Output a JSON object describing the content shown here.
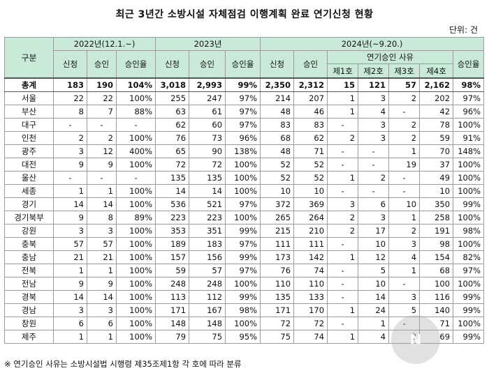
{
  "title": "최근 3년간 소방시설 자체점검 이행계획 완료 연기신청 현황",
  "unit": "단위: 건",
  "headers": {
    "category": "구분",
    "y2022": "2022년(12.1.~)",
    "y2023": "2023년",
    "y2024": "2024년(~9.20.)",
    "apply": "신청",
    "approve": "승인",
    "rate": "승인율",
    "reason_group": "연기승인 사유",
    "reasons": [
      "제1호",
      "제2호",
      "제3호",
      "제4호"
    ]
  },
  "rows": [
    [
      "총계",
      "183",
      "190",
      "104%",
      "3,018",
      "2,993",
      "99%",
      "2,350",
      "2,312",
      "15",
      "121",
      "57",
      "2,162",
      "98%"
    ],
    [
      "서울",
      "22",
      "22",
      "100%",
      "255",
      "247",
      "97%",
      "214",
      "207",
      "1",
      "3",
      "2",
      "202",
      "97%"
    ],
    [
      "부산",
      "8",
      "7",
      "88%",
      "63",
      "61",
      "97%",
      "48",
      "46",
      "1",
      "4",
      "-",
      "42",
      "96%"
    ],
    [
      "대구",
      "-",
      "-",
      "-",
      "62",
      "60",
      "97%",
      "83",
      "83",
      "-",
      "3",
      "2",
      "78",
      "100%"
    ],
    [
      "인천",
      "2",
      "2",
      "100%",
      "76",
      "73",
      "96%",
      "68",
      "62",
      "2",
      "3",
      "2",
      "59",
      "91%"
    ],
    [
      "광주",
      "3",
      "12",
      "400%",
      "65",
      "90",
      "138%",
      "48",
      "71",
      "-",
      "-",
      "1",
      "70",
      "148%"
    ],
    [
      "대전",
      "9",
      "9",
      "100%",
      "72",
      "72",
      "100%",
      "52",
      "52",
      "-",
      "-",
      "19",
      "37",
      "100%"
    ],
    [
      "울산",
      "-",
      "-",
      "-",
      "135",
      "135",
      "100%",
      "52",
      "52",
      "1",
      "2",
      "-",
      "49",
      "100%"
    ],
    [
      "세종",
      "1",
      "1",
      "100%",
      "14",
      "14",
      "100%",
      "10",
      "10",
      "-",
      "-",
      "-",
      "10",
      "100%"
    ],
    [
      "경기",
      "14",
      "14",
      "100%",
      "536",
      "521",
      "97%",
      "372",
      "369",
      "3",
      "6",
      "10",
      "350",
      "99%"
    ],
    [
      "경기북부",
      "9",
      "8",
      "89%",
      "223",
      "223",
      "100%",
      "265",
      "264",
      "2",
      "3",
      "1",
      "258",
      "100%"
    ],
    [
      "강원",
      "3",
      "3",
      "100%",
      "353",
      "351",
      "99%",
      "215",
      "210",
      "2",
      "17",
      "2",
      "191",
      "98%"
    ],
    [
      "충북",
      "57",
      "57",
      "100%",
      "189",
      "183",
      "97%",
      "111",
      "111",
      "-",
      "10",
      "3",
      "98",
      "100%"
    ],
    [
      "충남",
      "21",
      "21",
      "100%",
      "157",
      "156",
      "99%",
      "173",
      "142",
      "1",
      "12",
      "4",
      "154",
      "82%"
    ],
    [
      "전북",
      "1",
      "1",
      "100%",
      "59",
      "57",
      "97%",
      "76",
      "74",
      "-",
      "5",
      "1",
      "68",
      "97%"
    ],
    [
      "전남",
      "9",
      "9",
      "100%",
      "248",
      "248",
      "100%",
      "110",
      "110",
      "-",
      "10",
      "-",
      "100",
      "100%"
    ],
    [
      "경북",
      "14",
      "14",
      "100%",
      "113",
      "112",
      "99%",
      "135",
      "133",
      "-",
      "14",
      "3",
      "116",
      "99%"
    ],
    [
      "경남",
      "3",
      "3",
      "100%",
      "171",
      "167",
      "98%",
      "171",
      "170",
      "1",
      "24",
      "5",
      "140",
      "99%"
    ],
    [
      "창원",
      "6",
      "6",
      "100%",
      "148",
      "148",
      "100%",
      "72",
      "72",
      "-",
      "1",
      "-",
      "71",
      "100%"
    ],
    [
      "제주",
      "1",
      "1",
      "100%",
      "79",
      "75",
      "95%",
      "75",
      "74",
      "1",
      "4",
      "2",
      "69",
      "99%"
    ]
  ],
  "footnote": "※ 연기승인 사유는 소방시설법 시행령 제35조제1항 각 호에 따라 분류",
  "watermark": "N"
}
